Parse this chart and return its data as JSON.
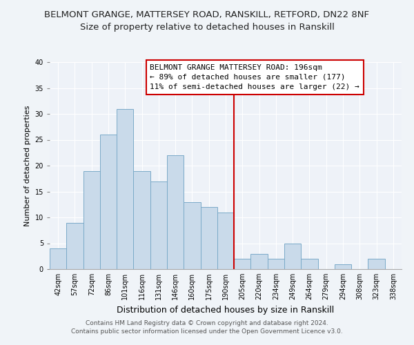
{
  "title": "BELMONT GRANGE, MATTERSEY ROAD, RANSKILL, RETFORD, DN22 8NF",
  "subtitle": "Size of property relative to detached houses in Ranskill",
  "xlabel": "Distribution of detached houses by size in Ranskill",
  "ylabel": "Number of detached properties",
  "bar_labels": [
    "42sqm",
    "57sqm",
    "72sqm",
    "86sqm",
    "101sqm",
    "116sqm",
    "131sqm",
    "146sqm",
    "160sqm",
    "175sqm",
    "190sqm",
    "205sqm",
    "220sqm",
    "234sqm",
    "249sqm",
    "264sqm",
    "279sqm",
    "294sqm",
    "308sqm",
    "323sqm",
    "338sqm"
  ],
  "bar_values": [
    4,
    9,
    19,
    26,
    31,
    19,
    17,
    22,
    13,
    12,
    11,
    2,
    3,
    2,
    5,
    2,
    0,
    1,
    0,
    2,
    0
  ],
  "bar_color": "#c9daea",
  "bar_edgecolor": "#7aaac8",
  "vline_color": "#cc0000",
  "ylim": [
    0,
    40
  ],
  "yticks": [
    0,
    5,
    10,
    15,
    20,
    25,
    30,
    35,
    40
  ],
  "annotation_title": "BELMONT GRANGE MATTERSEY ROAD: 196sqm",
  "annotation_line1": "← 89% of detached houses are smaller (177)",
  "annotation_line2": "11% of semi-detached houses are larger (22) →",
  "footer_line1": "Contains HM Land Registry data © Crown copyright and database right 2024.",
  "footer_line2": "Contains public sector information licensed under the Open Government Licence v3.0.",
  "background_color": "#f0f4f8",
  "plot_bg_color": "#eef2f8",
  "grid_color": "#ffffff",
  "title_fontsize": 9.5,
  "subtitle_fontsize": 9.5,
  "xlabel_fontsize": 9,
  "ylabel_fontsize": 8,
  "tick_fontsize": 7,
  "annotation_fontsize": 8,
  "footer_fontsize": 6.5
}
